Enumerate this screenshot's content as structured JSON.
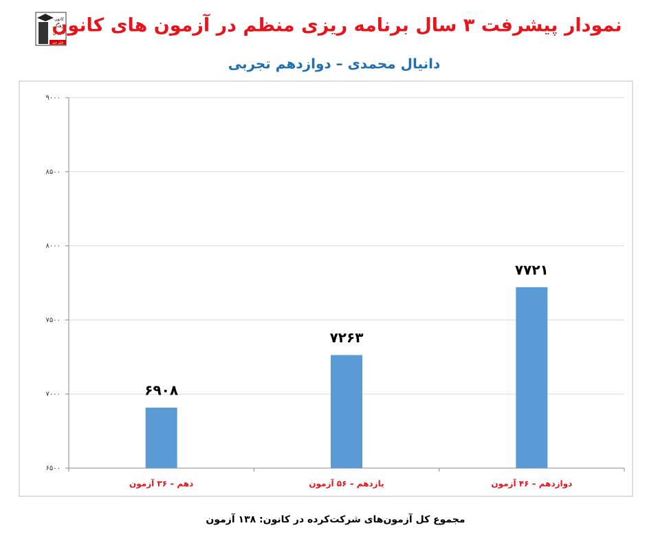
{
  "chart_data": {
    "type": "bar",
    "title": "نمودار پیشرفت ۳ سال برنامه ریزی منظم در آزمون های کانون",
    "subtitle": "دانیال محمدی – دوازدهم تجربی",
    "footer": "مجموع کل آزمون‌های شرکت‌کرده در کانون: ۱۳۸ آزمون",
    "logo_text": [
      "کانون",
      "فرهنگی",
      "آموزش",
      "قلم چی"
    ],
    "categories": [
      "دهم – ۳۶ آزمون",
      "یازدهم – ۵۶ آزمون",
      "دوازدهم – ۴۶ آزمون"
    ],
    "values": [
      6908,
      7263,
      7721
    ],
    "value_labels": [
      "۶۹۰۸",
      "۷۲۶۳",
      "۷۷۲۱"
    ],
    "color": "#5b9bd5",
    "ylim": [
      6500,
      9000
    ],
    "yticks": [
      {
        "value": 6500,
        "label": "۶۵۰۰"
      },
      {
        "value": 7000,
        "label": "۷۰۰۰"
      },
      {
        "value": 7500,
        "label": "۷۵۰۰"
      },
      {
        "value": 8000,
        "label": "۸۰۰۰"
      },
      {
        "value": 8500,
        "label": "۸۵۰۰"
      },
      {
        "value": 9000,
        "label": "۹۰۰۰"
      }
    ],
    "grid": true
  }
}
